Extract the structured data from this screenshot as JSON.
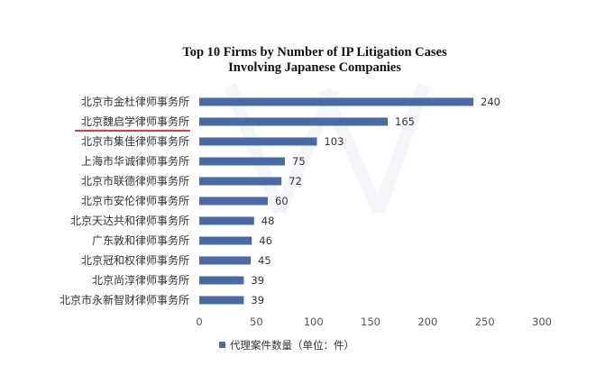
{
  "chart_data": {
    "type": "bar",
    "orientation": "horizontal",
    "title": "Top 10 Firms by Number of IP Litigation Cases Involving Japanese Companies",
    "title_lines": [
      "Top 10 Firms by Number of IP Litigation Cases",
      "Involving Japanese Companies"
    ],
    "categories": [
      "北京市金杜律师事务所",
      "北京魏启学律师事务所",
      "北京市集佳律师事务所",
      "上海市华诚律师事务所",
      "北京市联德律师事务所",
      "北京市安伦律师事务所",
      "北京天达共和律师事务所",
      "广东敦和律师事务所",
      "北京冠和权律师事务所",
      "北京尚淳律师事务所",
      "北京市永新智财律师事务所"
    ],
    "series": [
      {
        "name": "代理案件数量（单位：件）",
        "values": [
          240,
          165,
          103,
          75,
          72,
          60,
          48,
          46,
          45,
          39,
          39
        ]
      }
    ],
    "xlim": [
      0,
      300
    ],
    "xticks": [
      "0",
      "50",
      "100",
      "150",
      "200",
      "250",
      "300"
    ],
    "grid": false,
    "legend_position": "bottom",
    "highlighted_category": "北京魏启学律师事务所",
    "bar_color": "#4a6aa5",
    "highlight_color": "#c00000"
  }
}
